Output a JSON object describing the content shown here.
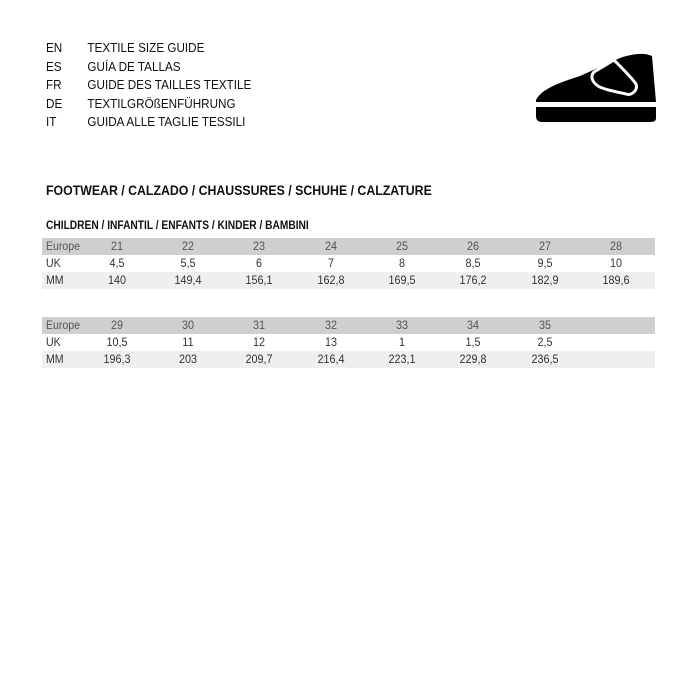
{
  "languages": [
    {
      "code": "EN",
      "title": "TEXTILE SIZE GUIDE"
    },
    {
      "code": "ES",
      "title": "GUÍA DE TALLAS"
    },
    {
      "code": "FR",
      "title": "GUIDE DES TAILLES TEXTILE"
    },
    {
      "code": "DE",
      "title": "TEXTILGRÖßENFÜHRUNG"
    },
    {
      "code": "IT",
      "title": "GUIDA ALLE TAGLIE TESSILI"
    }
  ],
  "icon": "shoe-icon",
  "section_title": "FOOTWEAR / CALZADO / CHAUSSURES / SCHUHE / CALZATURE",
  "subsection_title": "CHILDREN / INFANTIL / ENFANTS / KINDER / BAMBINI",
  "row_labels": {
    "europe": "Europe",
    "uk": "UK",
    "mm": "MM"
  },
  "tables": [
    {
      "europe": [
        "21",
        "22",
        "23",
        "24",
        "25",
        "26",
        "27",
        "28"
      ],
      "uk": [
        "4,5",
        "5,5",
        "6",
        "7",
        "8",
        "8,5",
        "9,5",
        "10"
      ],
      "mm": [
        "140",
        "149,4",
        "156,1",
        "162,8",
        "169,5",
        "176,2",
        "182,9",
        "189,6"
      ]
    },
    {
      "europe": [
        "29",
        "30",
        "31",
        "32",
        "33",
        "34",
        "35"
      ],
      "uk": [
        "10,5",
        "11",
        "12",
        "13",
        "1",
        "1,5",
        "2,5"
      ],
      "mm": [
        "196,3",
        "203",
        "209,7",
        "216,4",
        "223,1",
        "229,8",
        "236,5"
      ]
    }
  ]
}
